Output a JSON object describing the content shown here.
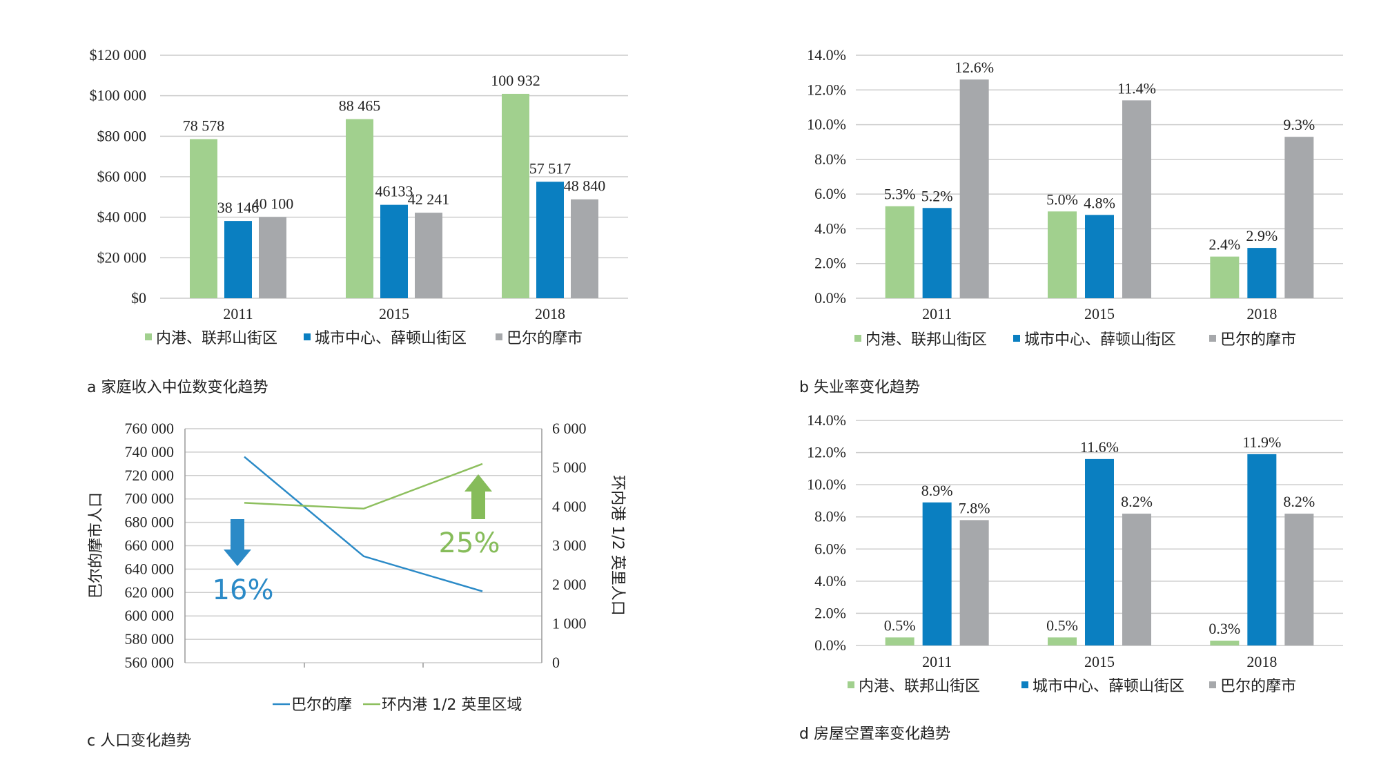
{
  "colors": {
    "inner_harbor": "#a1d08e",
    "downtown": "#0a7fc1",
    "baltimore": "#a6a8ab",
    "grid": "#cccccc",
    "line_baltimore": "#2b8ac7",
    "line_ring": "#8dbf5e",
    "arrow_down": "#2b8ac7",
    "arrow_up": "#86bc5a"
  },
  "chart_data": [
    {
      "id": "a",
      "type": "bar",
      "caption": "a  家庭收入中位数变化趋势",
      "categories": [
        "2011",
        "2015",
        "2018"
      ],
      "ylim": [
        0,
        120000
      ],
      "yticks": [
        "$120 000",
        "$100 000",
        "$80 000",
        "$60 000",
        "$40 000",
        "$20 000",
        "$0"
      ],
      "series": [
        {
          "name": "内港、联邦山街区",
          "color_key": "inner_harbor",
          "values": [
            78578,
            88465,
            100932
          ],
          "labels": [
            "78 578",
            "88 465",
            "100 932"
          ]
        },
        {
          "name": "城市中心、薛顿山街区",
          "color_key": "downtown",
          "values": [
            38146,
            46133,
            57517
          ],
          "labels": [
            "38 146",
            "46133",
            "57 517"
          ]
        },
        {
          "name": "巴尔的摩市",
          "color_key": "baltimore",
          "values": [
            40100,
            42241,
            48840
          ],
          "labels": [
            "40 100",
            "42 241",
            "48 840"
          ]
        }
      ],
      "legend": "bottom",
      "grid": true
    },
    {
      "id": "b",
      "type": "bar",
      "caption": "b  失业率变化趋势",
      "categories": [
        "2011",
        "2015",
        "2018"
      ],
      "ylim": [
        0,
        14
      ],
      "yticks": [
        "14.0%",
        "12.0%",
        "10.0%",
        "8.0%",
        "6.0%",
        "4.0%",
        "2.0%",
        "0.0%"
      ],
      "series": [
        {
          "name": "内港、联邦山街区",
          "color_key": "inner_harbor",
          "values": [
            5.3,
            5.0,
            2.4
          ],
          "labels": [
            "5.3%",
            "5.0%",
            "2.4%"
          ]
        },
        {
          "name": "城市中心、薛顿山街区",
          "color_key": "downtown",
          "values": [
            5.2,
            4.8,
            2.9
          ],
          "labels": [
            "5.2%",
            "4.8%",
            "2.9%"
          ]
        },
        {
          "name": "巴尔的摩市",
          "color_key": "baltimore",
          "values": [
            12.6,
            11.4,
            9.3
          ],
          "labels": [
            "12.6%",
            "11.4%",
            "9.3%"
          ]
        }
      ],
      "legend": "bottom",
      "grid": true
    },
    {
      "id": "c",
      "type": "line",
      "caption": "c  人口变化趋势",
      "ylabel_left": "巴尔的摩市人口",
      "ylabel_right": "环内港 1/2 英里人口",
      "ylim_left": [
        560000,
        760000
      ],
      "ylim_right": [
        0,
        6000
      ],
      "yticks_left": [
        "760 000",
        "740 000",
        "720 000",
        "700 000",
        "680 000",
        "660 000",
        "640 000",
        "620 000",
        "600 000",
        "580 000",
        "560 000"
      ],
      "yticks_right": [
        "6 000",
        "5 000",
        "4 000",
        "3 000",
        "2 000",
        "1 000",
        "0"
      ],
      "series": [
        {
          "name": "巴尔的摩",
          "color_key": "line_baltimore",
          "axis": "left",
          "values": [
            736000,
            651000,
            621000
          ]
        },
        {
          "name": "环内港 1/2 英里区域",
          "color_key": "line_ring",
          "axis": "right",
          "values": [
            4100,
            3950,
            5100
          ]
        }
      ],
      "annotations": [
        {
          "text": "16%",
          "direction": "down",
          "color_key": "arrow_down"
        },
        {
          "text": "25%",
          "direction": "up",
          "color_key": "arrow_up"
        }
      ],
      "legend": "bottom",
      "grid": true
    },
    {
      "id": "d",
      "type": "bar",
      "caption": "d  房屋空置率变化趋势",
      "categories": [
        "2011",
        "2015",
        "2018"
      ],
      "ylim": [
        0,
        14
      ],
      "yticks": [
        "14.0%",
        "12.0%",
        "10.0%",
        "8.0%",
        "6.0%",
        "4.0%",
        "2.0%",
        "0.0%"
      ],
      "series": [
        {
          "name": "内港、联邦山街区",
          "color_key": "inner_harbor",
          "values": [
            0.5,
            0.5,
            0.3
          ],
          "labels": [
            "0.5%",
            "0.5%",
            "0.3%"
          ]
        },
        {
          "name": "城市中心、薛顿山街区",
          "color_key": "downtown",
          "values": [
            8.9,
            11.6,
            11.9
          ],
          "labels": [
            "8.9%",
            "11.6%",
            "11.9%"
          ]
        },
        {
          "name": "巴尔的摩市",
          "color_key": "baltimore",
          "values": [
            7.8,
            8.2,
            8.2
          ],
          "labels": [
            "7.8%",
            "8.2%",
            "8.2%"
          ]
        }
      ],
      "legend": "bottom",
      "grid": true
    }
  ]
}
